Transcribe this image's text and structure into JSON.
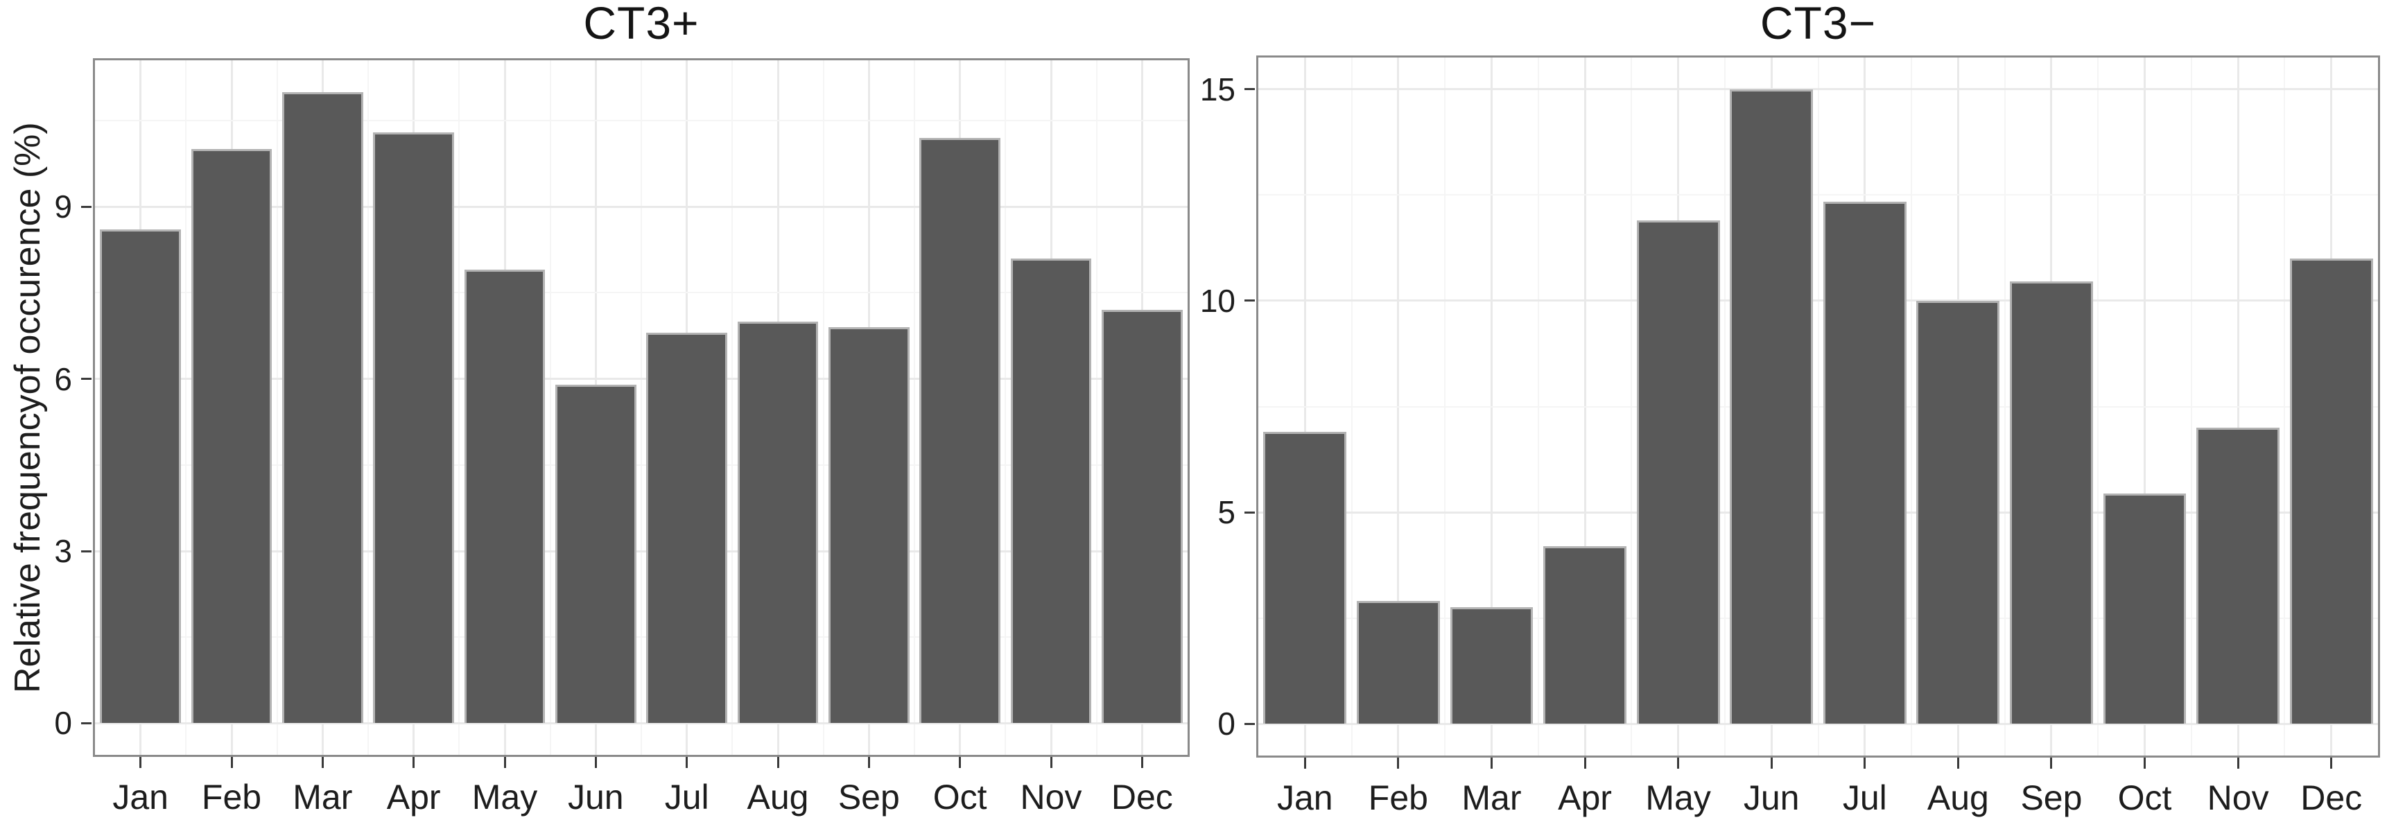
{
  "figure": {
    "background": "#ffffff"
  },
  "chart_data": [
    {
      "type": "bar",
      "title": "CT3+",
      "ylabel": "Relative frequencyof occurence (%)",
      "xlabel": "",
      "categories": [
        "Jan",
        "Feb",
        "Mar",
        "Apr",
        "May",
        "Jun",
        "Jul",
        "Aug",
        "Sep",
        "Oct",
        "Nov",
        "Dec"
      ],
      "values": [
        8.6,
        10.0,
        11.0,
        10.3,
        7.9,
        5.9,
        6.8,
        7.0,
        6.9,
        10.2,
        8.1,
        7.2
      ],
      "yticks": [
        0,
        3,
        6,
        9
      ],
      "minor_yticks": [
        1.5,
        4.5,
        7.5,
        10.5
      ],
      "ylim": [
        -0.55,
        11.55
      ],
      "grid": true,
      "legend": false,
      "bar_color": "#595959",
      "bar_edge_color": "#b3b3b3"
    },
    {
      "type": "bar",
      "title": "CT3−",
      "ylabel": "",
      "xlabel": "",
      "categories": [
        "Jan",
        "Feb",
        "Mar",
        "Apr",
        "May",
        "Jun",
        "Jul",
        "Aug",
        "Sep",
        "Oct",
        "Nov",
        "Dec"
      ],
      "values": [
        6.9,
        2.9,
        2.75,
        4.2,
        11.9,
        15.0,
        12.35,
        10.0,
        10.45,
        5.45,
        7.0,
        11.0
      ],
      "yticks": [
        0,
        5,
        10,
        15
      ],
      "minor_yticks": [
        2.5,
        7.5,
        12.5
      ],
      "ylim": [
        -0.75,
        15.75
      ],
      "grid": true,
      "legend": false,
      "bar_color": "#595959",
      "bar_edge_color": "#b3b3b3"
    }
  ],
  "style": {
    "panel_border_color": "#8a8a8a",
    "grid_major_color": "#e9e9e9",
    "grid_minor_color": "#f5f5f5",
    "tick_color": "#3a3a3a",
    "text_color": "#1d1d1d"
  }
}
